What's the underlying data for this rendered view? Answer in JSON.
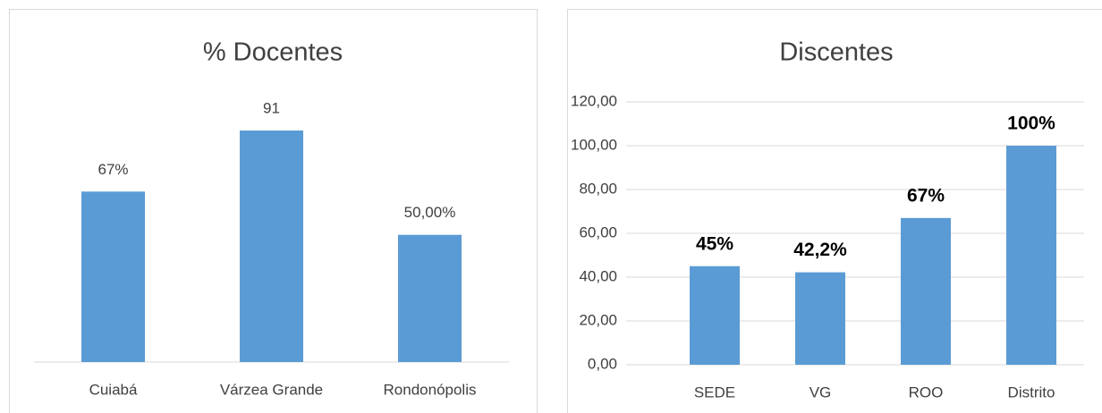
{
  "chart_data": [
    {
      "type": "bar",
      "title": "% Docentes",
      "categories": [
        "Cuiabá",
        "Várzea Grande",
        "Rondonópolis"
      ],
      "values": [
        67,
        91,
        50
      ],
      "value_labels": [
        "67%",
        "91",
        "50,00%"
      ],
      "color": "#5b9bd5"
    },
    {
      "type": "bar",
      "title": "Discentes",
      "categories": [
        "SEDE",
        "VG",
        "ROO",
        "Distrito"
      ],
      "values": [
        45,
        42.2,
        67,
        100
      ],
      "value_labels": [
        "45%",
        "42,2%",
        "67%",
        "100%"
      ],
      "color": "#5b9bd5",
      "ylim": [
        0,
        120
      ],
      "yticks": [
        {
          "value": 0,
          "label": "0,00"
        },
        {
          "value": 20,
          "label": "20,00"
        },
        {
          "value": 40,
          "label": "40,00"
        },
        {
          "value": 60,
          "label": "60,00"
        },
        {
          "value": 80,
          "label": "80,00"
        },
        {
          "value": 100,
          "label": "100,00"
        },
        {
          "value": 120,
          "label": "120,00"
        }
      ],
      "grid": true
    }
  ]
}
